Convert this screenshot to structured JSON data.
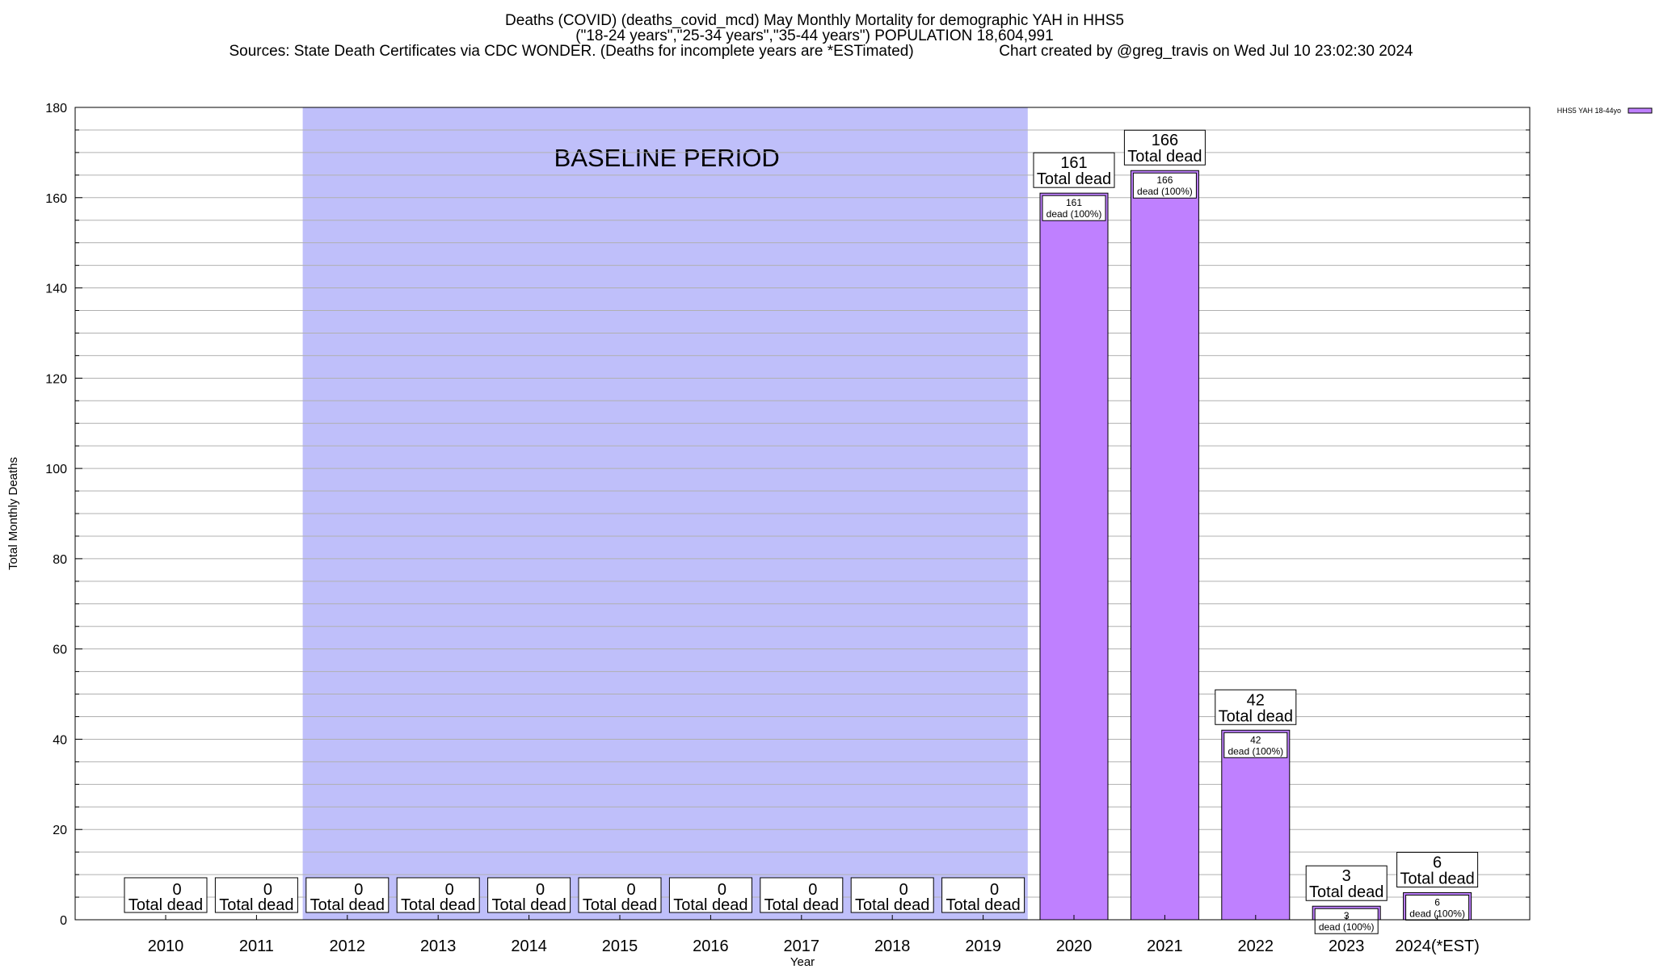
{
  "chart_data": {
    "type": "bar",
    "title": "Deaths (COVID) (deaths_covid_mcd) May Monthly Mortality for demographic YAH in HHS5",
    "subtitle": "(\"18-24 years\",\"25-34 years\",\"35-44 years\") POPULATION 18,604,991",
    "sources": "Sources: State Death Certificates via CDC WONDER. (Deaths for incomplete years are *ESTimated)",
    "credit": "Chart created by @greg_travis on Wed Jul 10 23:02:30 2024",
    "xlabel": "Year",
    "ylabel": "Total Monthly Deaths",
    "ylim": [
      0,
      180
    ],
    "yticks": [
      0,
      20,
      40,
      60,
      80,
      100,
      120,
      140,
      160,
      180
    ],
    "categories": [
      "2010",
      "2011",
      "2012",
      "2013",
      "2014",
      "2015",
      "2016",
      "2017",
      "2018",
      "2019",
      "2020",
      "2021",
      "2022",
      "2023",
      "2024(*EST)"
    ],
    "series": [
      {
        "name": "HHS5 YAH 18-44yo",
        "values": [
          0,
          0,
          0,
          0,
          0,
          0,
          0,
          0,
          0,
          0,
          161,
          166,
          42,
          3,
          6
        ]
      }
    ],
    "bar_color": "#bf80ff",
    "baseline_color": "#bfbffa",
    "baseline_label": "BASELINE PERIOD",
    "baseline_range": [
      "2012",
      "2019"
    ],
    "total_label": "Total dead",
    "inner_label_suffix": "dead (100%)",
    "legend_position": "top-right",
    "grid": true
  }
}
